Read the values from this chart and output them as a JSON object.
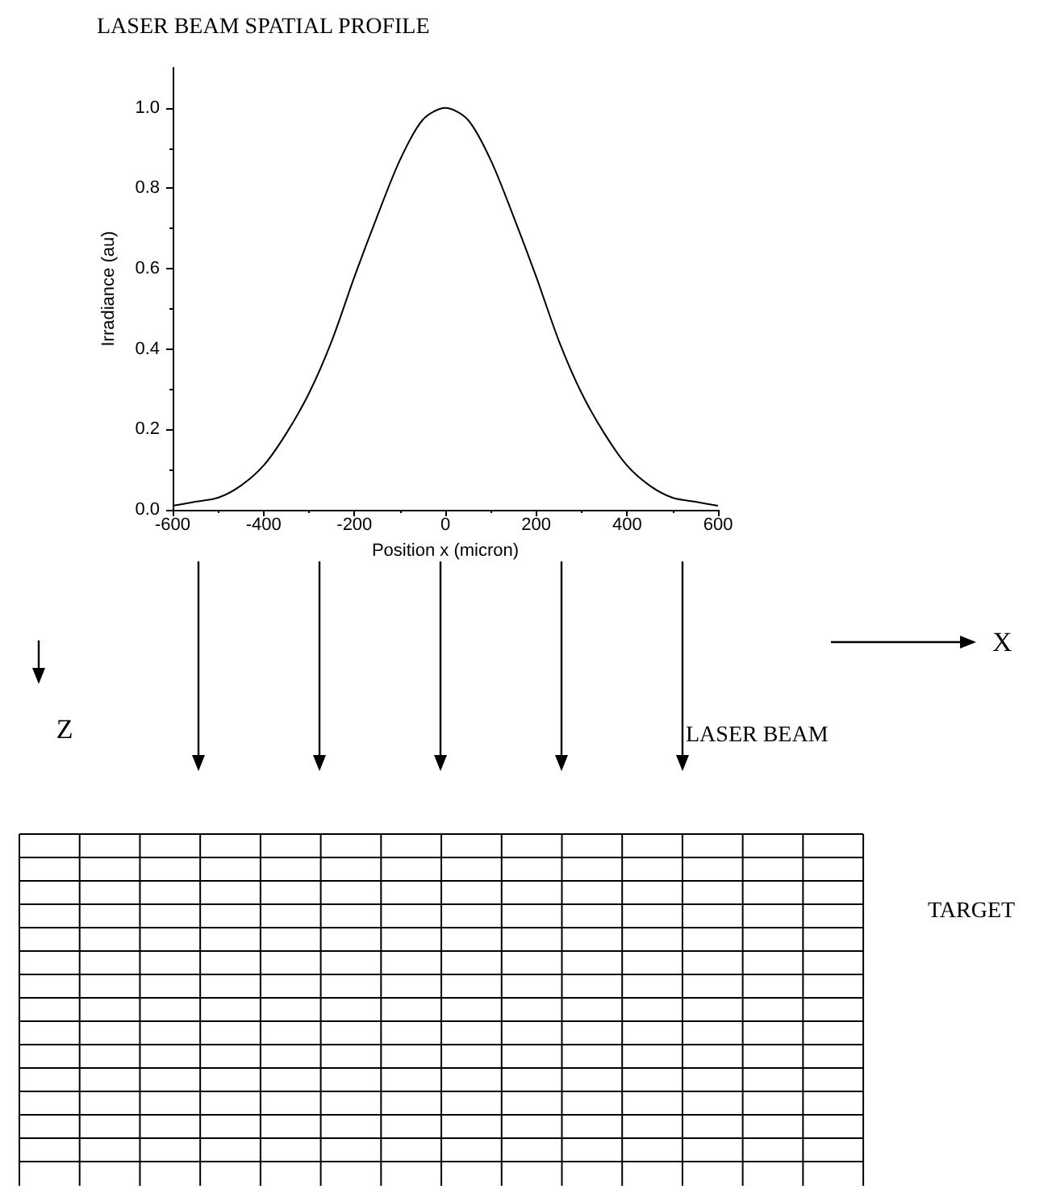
{
  "chart_data": {
    "type": "line",
    "title": "LASER BEAM SPATIAL PROFILE",
    "xlabel": "Position x (micron)",
    "ylabel": "Irradiance (au)",
    "x": [
      -600,
      -550,
      -500,
      -450,
      -400,
      -350,
      -300,
      -250,
      -200,
      -150,
      -100,
      -50,
      0,
      50,
      100,
      150,
      200,
      250,
      300,
      350,
      400,
      450,
      500,
      550,
      600
    ],
    "series": [
      {
        "color": "#000000",
        "values": [
          0.01,
          0.02,
          0.03,
          0.06,
          0.11,
          0.19,
          0.29,
          0.42,
          0.58,
          0.73,
          0.87,
          0.97,
          1.0,
          0.97,
          0.87,
          0.73,
          0.58,
          0.42,
          0.29,
          0.19,
          0.11,
          0.06,
          0.03,
          0.02,
          0.01
        ]
      }
    ],
    "xlim": [
      -600,
      600
    ],
    "xticks": [
      -600,
      -400,
      -200,
      0,
      200,
      400,
      600
    ],
    "ylim": [
      0,
      1.1
    ],
    "yticks": [
      {
        "value": 0,
        "label": "0.0"
      },
      0.2,
      0.4,
      0.6,
      0.8,
      {
        "value": 1,
        "label": "1.0"
      }
    ],
    "grid": false,
    "marker": "none",
    "line_style": "solid",
    "annotations": [
      "X",
      "Z",
      "LASER BEAM",
      "TARGET"
    ]
  }
}
